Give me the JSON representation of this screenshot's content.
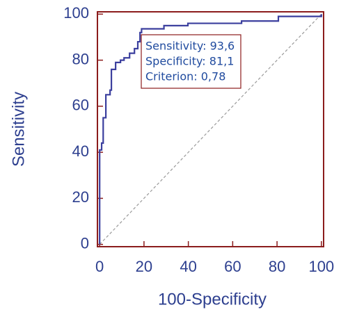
{
  "chart_data": {
    "type": "line",
    "x_label": "100-Specificity",
    "y_label": "Sensitivity",
    "x": [
      0,
      0,
      0.9,
      0.9,
      1.6,
      1.6,
      2.8,
      2.8,
      4.7,
      4.7,
      5.3,
      5.3,
      7.2,
      7.2,
      9.4,
      9.4,
      11,
      11,
      13.5,
      13.5,
      15.7,
      15.7,
      17.2,
      17.2,
      18.2,
      18.2,
      18.9,
      18.9,
      29,
      29,
      39.8,
      39.8,
      64,
      64,
      80.6,
      80.6,
      100,
      100
    ],
    "values": [
      0,
      41,
      41,
      44,
      44,
      55,
      55,
      65,
      65,
      67,
      67,
      76,
      76,
      79,
      79,
      80,
      80,
      81,
      81,
      83,
      83,
      85,
      85,
      88,
      88,
      92,
      92,
      93.6,
      93.6,
      95,
      95,
      96,
      96,
      97,
      97,
      99,
      99,
      100
    ],
    "color": "#3b3f9e",
    "diagonal": {
      "x": [
        0,
        100
      ],
      "y": [
        0,
        100
      ],
      "color": "#9a9a9a"
    },
    "annotation": [
      "Sensitivity: 93,6",
      "Specificity: 81,1",
      "Criterion: 0,78"
    ],
    "xlim": [
      -1,
      101
    ],
    "ylim": [
      -1,
      101
    ],
    "xticks": [
      0,
      20,
      40,
      60,
      80,
      100
    ],
    "yticks": [
      0,
      20,
      40,
      60,
      80,
      100
    ],
    "frame_color": "#8b1c1c",
    "text_color": "#2d3f8f"
  }
}
